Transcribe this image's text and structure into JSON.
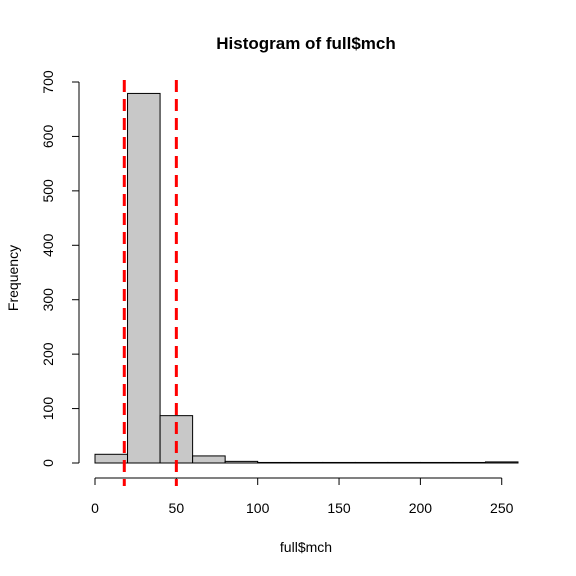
{
  "chart_data": {
    "type": "bar",
    "title": "Histogram of full$mch",
    "xlabel": "full$mch",
    "ylabel": "Frequency",
    "bin_edges": [
      0,
      20,
      40,
      60,
      80,
      100,
      120,
      140,
      160,
      180,
      200,
      220,
      240,
      260
    ],
    "values": [
      16,
      679,
      87,
      13,
      3,
      1,
      1,
      1,
      1,
      1,
      1,
      1,
      2
    ],
    "xlim": [
      0,
      260
    ],
    "ylim": [
      0,
      700
    ],
    "x_ticks": [
      0,
      50,
      100,
      150,
      200,
      250
    ],
    "y_ticks": [
      0,
      100,
      200,
      300,
      400,
      500,
      600,
      700
    ],
    "reference_lines": [
      {
        "x": 18,
        "color": "#ff0000",
        "style": "dashed"
      },
      {
        "x": 50,
        "color": "#ff0000",
        "style": "dashed"
      }
    ],
    "bar_color": "#c8c8c8",
    "grid": false,
    "legend": false
  }
}
